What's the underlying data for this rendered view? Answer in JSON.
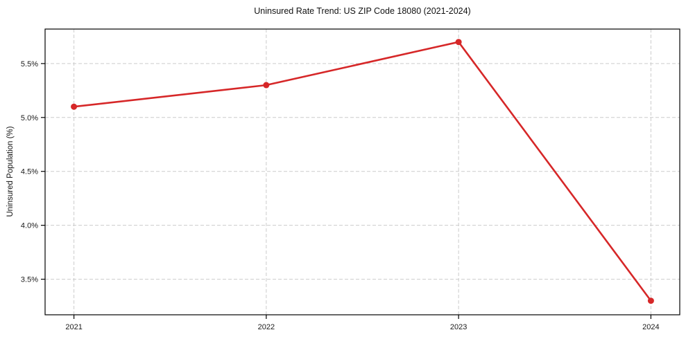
{
  "chart_data": {
    "type": "line",
    "title": "Uninsured Rate Trend: US ZIP Code 18080 (2021-2024)",
    "xlabel": "",
    "ylabel": "Uninsured Population (%)",
    "x": [
      2021,
      2022,
      2023,
      2024
    ],
    "x_tick_labels": [
      "2021",
      "2022",
      "2023",
      "2024"
    ],
    "series": [
      {
        "name": "uninsured-rate",
        "values": [
          5.1,
          5.3,
          5.7,
          3.3
        ]
      }
    ],
    "y_tick_values": [
      3.5,
      4.0,
      4.5,
      5.0,
      5.5
    ],
    "y_tick_labels": [
      "3.5%",
      "4.0%",
      "4.5%",
      "5.0%",
      "5.5%"
    ],
    "xlim": [
      2020.85,
      2024.15
    ],
    "ylim": [
      3.17,
      5.82
    ],
    "grid": true,
    "grid_style": "dashed",
    "legend_position": "none",
    "colors": {
      "line": "#d62728",
      "marker": "#d62728",
      "grid": "#cccccc",
      "axis": "#000000",
      "tick_text": "#1a1a1a",
      "background": "#ffffff"
    }
  }
}
